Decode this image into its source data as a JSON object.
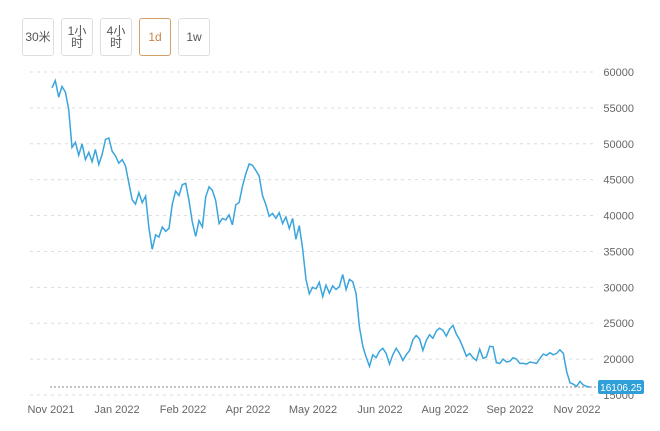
{
  "toolbar": {
    "tabs": [
      {
        "label": "30米",
        "active": false
      },
      {
        "label": "1小时",
        "active": false
      },
      {
        "label": "4小时",
        "active": false
      },
      {
        "label": "1d",
        "active": true
      },
      {
        "label": "1w",
        "active": false
      }
    ]
  },
  "colors": {
    "line": "#3aa5dc",
    "active_tab": "#c8864a",
    "price_tag_bg": "#2e9fd8",
    "last_price_line": "#888888"
  },
  "chart_data": {
    "type": "line",
    "title": "",
    "xlabel": "",
    "ylabel": "",
    "ylim": [
      15000,
      60000
    ],
    "y_ticks": [
      60000,
      55000,
      50000,
      45000,
      40000,
      35000,
      30000,
      25000,
      20000,
      15000
    ],
    "x_ticks": [
      "Nov 2021",
      "Jan 2022",
      "Feb 2022",
      "Apr 2022",
      "May 2022",
      "Jun 2022",
      "Aug 2022",
      "Sep 2022",
      "Nov 2022"
    ],
    "last_price": "16106.25",
    "grid": true,
    "series": [
      {
        "values": [
          57800,
          58800,
          56500,
          58000,
          57200,
          54800,
          49500,
          50200,
          48400,
          50000,
          47800,
          48800,
          47500,
          49200,
          47100,
          48500,
          50600,
          50800,
          49000,
          48300,
          47300,
          47800,
          46900,
          44500,
          42200,
          41600,
          43200,
          41800,
          42700,
          38300,
          35300,
          37300,
          37000,
          38400,
          37800,
          38200,
          41600,
          43400,
          42800,
          44300,
          44500,
          42100,
          39100,
          37100,
          39300,
          38400,
          42600,
          44000,
          43500,
          42100,
          38900,
          39600,
          39400,
          40100,
          38700,
          41500,
          41800,
          44100,
          45800,
          47200,
          47000,
          46300,
          45500,
          42800,
          41500,
          39900,
          40300,
          39600,
          40400,
          38900,
          39800,
          38200,
          39600,
          36700,
          38600,
          35400,
          31100,
          29100,
          30000,
          29800,
          30700,
          28700,
          30300,
          29200,
          30200,
          29700,
          30100,
          31800,
          29700,
          31100,
          30800,
          29100,
          24500,
          21800,
          20300,
          19000,
          20600,
          20200,
          21100,
          21500,
          20800,
          19300,
          20600,
          21500,
          20800,
          19800,
          20600,
          21200,
          22700,
          23300,
          22800,
          21200,
          22600,
          23400,
          22900,
          23900,
          24300,
          24000,
          23200,
          24200,
          24700,
          23500,
          22700,
          21600,
          20400,
          20800,
          20200,
          19800,
          21400,
          20100,
          20300,
          21800,
          21700,
          19500,
          19400,
          20000,
          19600,
          19700,
          20200,
          20000,
          19400,
          19400,
          19300,
          19600,
          19500,
          19400,
          20100,
          20700,
          20500,
          20900,
          20600,
          20800,
          21300,
          20800,
          18300,
          16700,
          16500,
          16200,
          16900,
          16400,
          16200,
          16100
        ]
      }
    ]
  }
}
